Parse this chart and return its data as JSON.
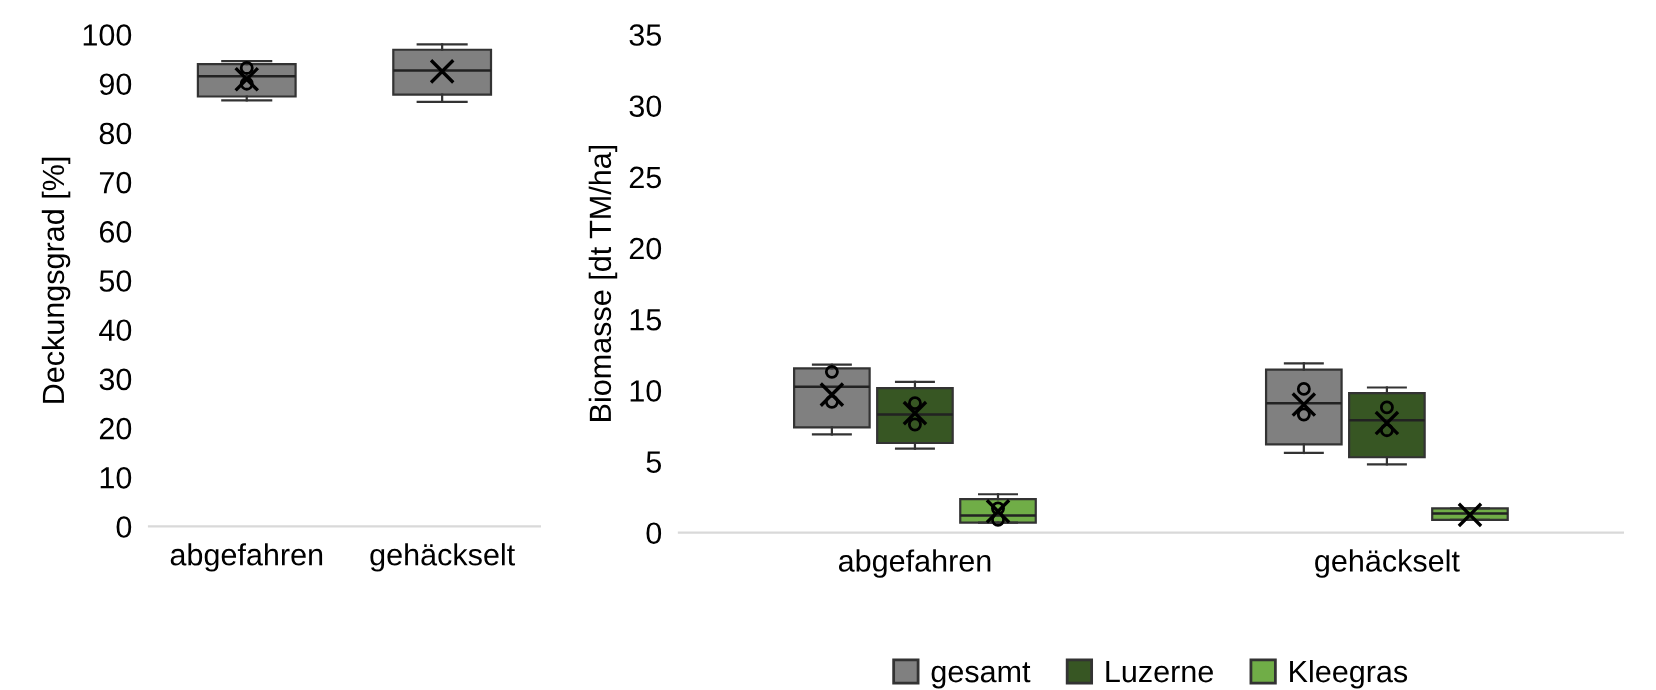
{
  "chart_data": [
    {
      "type": "box",
      "ylabel": "Deckungsgrad [%]",
      "categories": [
        "abgefahren",
        "gehäckselt"
      ],
      "ylim": [
        0,
        100
      ],
      "yticks": [
        0,
        10,
        20,
        30,
        40,
        50,
        60,
        70,
        80,
        90,
        100
      ],
      "grid": false,
      "color": "#808080",
      "boxes": [
        {
          "low": 86.6,
          "q1": 87.4,
          "median": 91.5,
          "q3": 94.0,
          "high": 94.6,
          "mean": 90.9,
          "outliers": [
            93.2,
            90.0
          ]
        },
        {
          "low": 86.3,
          "q1": 87.8,
          "median": 92.7,
          "q3": 96.9,
          "high": 98.0,
          "mean": 92.5
        }
      ]
    },
    {
      "type": "box",
      "ylabel": "Biomasse [dt TM/ha]",
      "categories": [
        "abgefahren",
        "gehäckselt"
      ],
      "ylim": [
        0,
        35
      ],
      "yticks": [
        0,
        5,
        10,
        15,
        20,
        25,
        30,
        35
      ],
      "grid": false,
      "legend": "bottom",
      "series": [
        {
          "name": "gesamt",
          "color": "#808080",
          "boxes": [
            {
              "low": 6.9,
              "q1": 7.4,
              "median": 10.25,
              "q3": 11.55,
              "high": 11.8,
              "mean": 9.7,
              "outliers": [
                11.3,
                9.2
              ]
            },
            {
              "low": 5.6,
              "q1": 6.2,
              "median": 9.1,
              "q3": 11.45,
              "high": 11.9,
              "mean": 9.0,
              "outliers": [
                10.1,
                8.3
              ]
            }
          ]
        },
        {
          "name": "Luzerne",
          "color": "#375623",
          "boxes": [
            {
              "low": 5.9,
              "q1": 6.3,
              "median": 8.3,
              "q3": 10.15,
              "high": 10.6,
              "mean": 8.4,
              "outliers": [
                9.1,
                7.6
              ]
            },
            {
              "low": 4.8,
              "q1": 5.3,
              "median": 7.9,
              "q3": 9.8,
              "high": 10.2,
              "mean": 7.7,
              "outliers": [
                8.8,
                7.2
              ]
            }
          ]
        },
        {
          "name": "Kleegras",
          "color": "#70ad47",
          "boxes": [
            {
              "low": 0.7,
              "q1": 0.7,
              "median": 1.2,
              "q3": 2.35,
              "high": 2.7,
              "mean": 1.5,
              "outliers": [
                1.7,
                0.9
              ]
            },
            {
              "low": 0.9,
              "q1": 0.9,
              "median": 1.35,
              "q3": 1.7,
              "high": 1.7,
              "mean": 1.25
            }
          ]
        }
      ]
    }
  ]
}
